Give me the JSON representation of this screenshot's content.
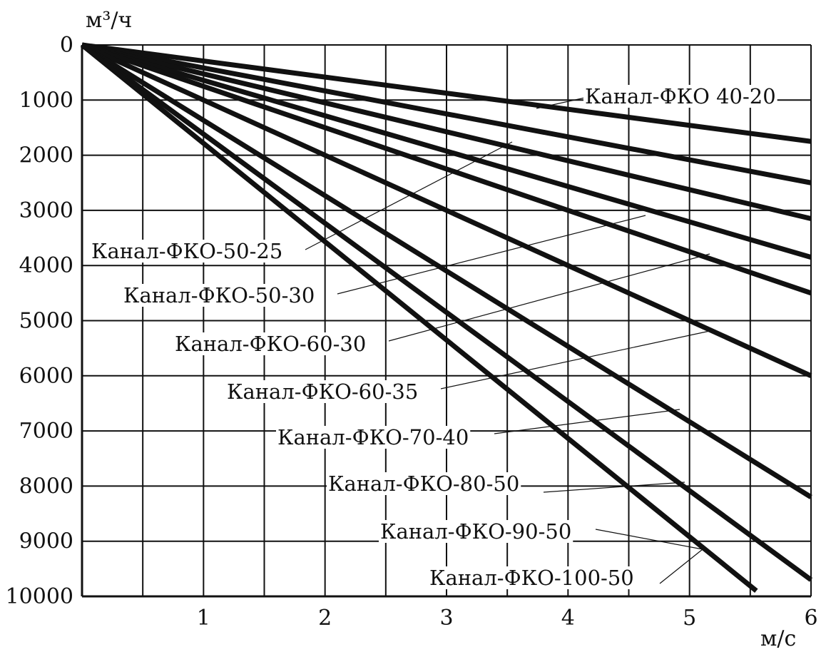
{
  "chart_data": {
    "type": "line",
    "xlabel": "м/с",
    "ylabel": "м³/ч",
    "xlim": [
      0,
      6
    ],
    "ylim": [
      0,
      10000
    ],
    "y_inverted": true,
    "grid": true,
    "x_ticks": [
      {
        "value": 1,
        "label": "1"
      },
      {
        "value": 2,
        "label": "2"
      },
      {
        "value": 3,
        "label": "3"
      },
      {
        "value": 4,
        "label": "4"
      },
      {
        "value": 5,
        "label": "5"
      },
      {
        "value": 6,
        "label": "6"
      }
    ],
    "y_ticks": [
      {
        "value": 0,
        "label": "0"
      },
      {
        "value": 1000,
        "label": "1000"
      },
      {
        "value": 2000,
        "label": "2000"
      },
      {
        "value": 3000,
        "label": "3000"
      },
      {
        "value": 4000,
        "label": "4000"
      },
      {
        "value": 5000,
        "label": "5000"
      },
      {
        "value": 6000,
        "label": "6000"
      },
      {
        "value": 7000,
        "label": "7000"
      },
      {
        "value": 8000,
        "label": "8000"
      },
      {
        "value": 9000,
        "label": "9000"
      },
      {
        "value": 10000,
        "label": "10000"
      }
    ],
    "series": [
      {
        "name": "Канал-ФКО 40-20",
        "x": [
          0,
          6
        ],
        "y": [
          0,
          1750
        ]
      },
      {
        "name": "Канал-ФКО-50-25",
        "x": [
          0,
          6
        ],
        "y": [
          0,
          2500
        ]
      },
      {
        "name": "Канал-ФКО-50-30",
        "x": [
          0,
          6
        ],
        "y": [
          0,
          3150
        ]
      },
      {
        "name": "Канал-ФКО-60-30",
        "x": [
          0,
          6
        ],
        "y": [
          0,
          3850
        ]
      },
      {
        "name": "Канал-ФКО-60-35",
        "x": [
          0,
          6
        ],
        "y": [
          0,
          4500
        ]
      },
      {
        "name": "Канал-ФКО-70-40",
        "x": [
          0,
          6
        ],
        "y": [
          0,
          6000
        ]
      },
      {
        "name": "Канал-ФКО-80-50",
        "x": [
          0,
          6
        ],
        "y": [
          0,
          8200
        ]
      },
      {
        "name": "Канал-ФКО-90-50",
        "x": [
          0,
          6
        ],
        "y": [
          0,
          9700
        ]
      },
      {
        "name": "Канал-ФКО-100-50",
        "x": [
          0,
          5.55
        ],
        "y": [
          0,
          9900
        ]
      }
    ]
  }
}
